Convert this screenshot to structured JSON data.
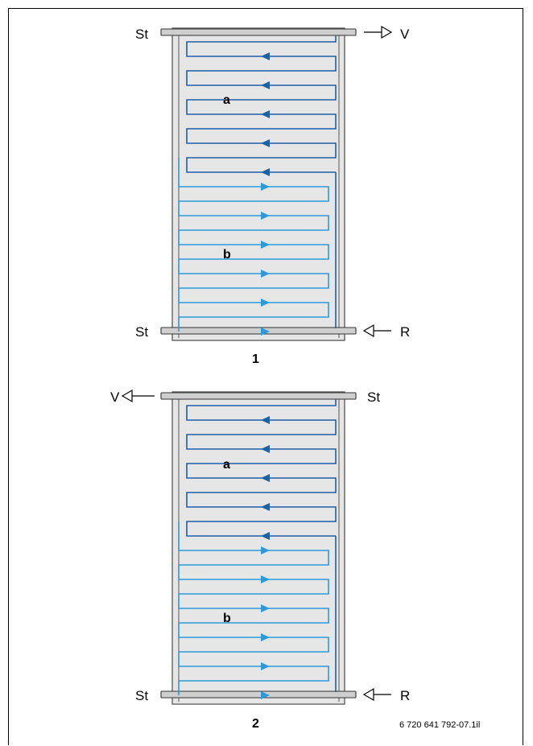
{
  "labels": {
    "top_st": "St",
    "bottom_st": "St",
    "v": "V",
    "r": "R",
    "a": "a",
    "b": "b"
  },
  "diagrams": [
    {
      "number": "1"
    },
    {
      "number": "2"
    }
  ],
  "figure_code": "6 720 641 792-07.1il",
  "colors": {
    "panel_fill": "#e6e6e6",
    "panel_stroke": "#555555",
    "circuit_a": "#1e5fa8",
    "circuit_b": "#2b9ad8",
    "arrow_a": "#1e5fa8",
    "arrow_b": "#2b9ad8",
    "pipe_fill": "#cfcfcf"
  }
}
